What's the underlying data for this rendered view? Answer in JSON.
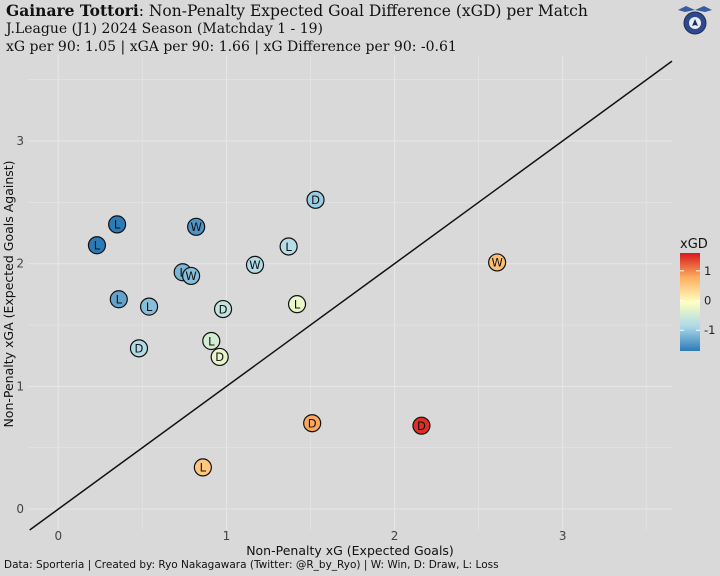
{
  "header": {
    "title_bold": "Gainare Tottori",
    "title_rest": ": Non-Penalty Expected Goal Difference (xGD) per Match",
    "subtitle_1": "J.League (J1) 2024 Season (Matchday 1 - 19)",
    "subtitle_2": "xG per 90: 1.05 | xGA per 90: 1.66 | xG Difference per 90: -0.61"
  },
  "caption": "Data: Sporteria | Created by: Ryo Nakagawara (Twitter: @R_by_Ryo) | W: Win, D: Draw, L: Loss",
  "chart_data": {
    "type": "scatter",
    "xlabel": "Non-Penalty xG (Expected Goals)",
    "ylabel": "Non-Penalty xGA (Expected Goals Against)",
    "xlim": [
      -0.18,
      3.65
    ],
    "ylim": [
      -0.17,
      3.7
    ],
    "xticks": [
      0,
      1,
      2,
      3
    ],
    "yticks": [
      0,
      1,
      2,
      3
    ],
    "grid": true,
    "reference_line": "y = x",
    "legend": {
      "title": "xGD",
      "position": "right",
      "range": [
        -1.7,
        1.6
      ],
      "ticks": [
        1,
        0,
        -1
      ],
      "tick_labels": [
        "1",
        "0",
        "-1"
      ],
      "colors": [
        "#2c7bb6",
        "#abd9e9",
        "#ffffbf",
        "#fdae61",
        "#d7191c"
      ]
    },
    "points": [
      {
        "x": 0.35,
        "y": 2.32,
        "result": "L"
      },
      {
        "x": 0.23,
        "y": 2.15,
        "result": "L"
      },
      {
        "x": 0.82,
        "y": 2.3,
        "result": "W"
      },
      {
        "x": 1.53,
        "y": 2.52,
        "result": "D"
      },
      {
        "x": 1.37,
        "y": 2.14,
        "result": "L"
      },
      {
        "x": 1.17,
        "y": 1.99,
        "result": "W"
      },
      {
        "x": 0.74,
        "y": 1.93,
        "result": "L"
      },
      {
        "x": 0.79,
        "y": 1.9,
        "result": "W"
      },
      {
        "x": 0.36,
        "y": 1.71,
        "result": "L"
      },
      {
        "x": 0.54,
        "y": 1.65,
        "result": "L"
      },
      {
        "x": 0.98,
        "y": 1.63,
        "result": "D"
      },
      {
        "x": 1.42,
        "y": 1.67,
        "result": "L"
      },
      {
        "x": 0.91,
        "y": 1.37,
        "result": "L"
      },
      {
        "x": 0.48,
        "y": 1.31,
        "result": "D"
      },
      {
        "x": 0.96,
        "y": 1.24,
        "result": "D"
      },
      {
        "x": 2.61,
        "y": 2.01,
        "result": "W"
      },
      {
        "x": 1.51,
        "y": 0.7,
        "result": "D"
      },
      {
        "x": 2.16,
        "y": 0.68,
        "result": "D"
      },
      {
        "x": 0.86,
        "y": 0.34,
        "result": "L"
      }
    ]
  }
}
